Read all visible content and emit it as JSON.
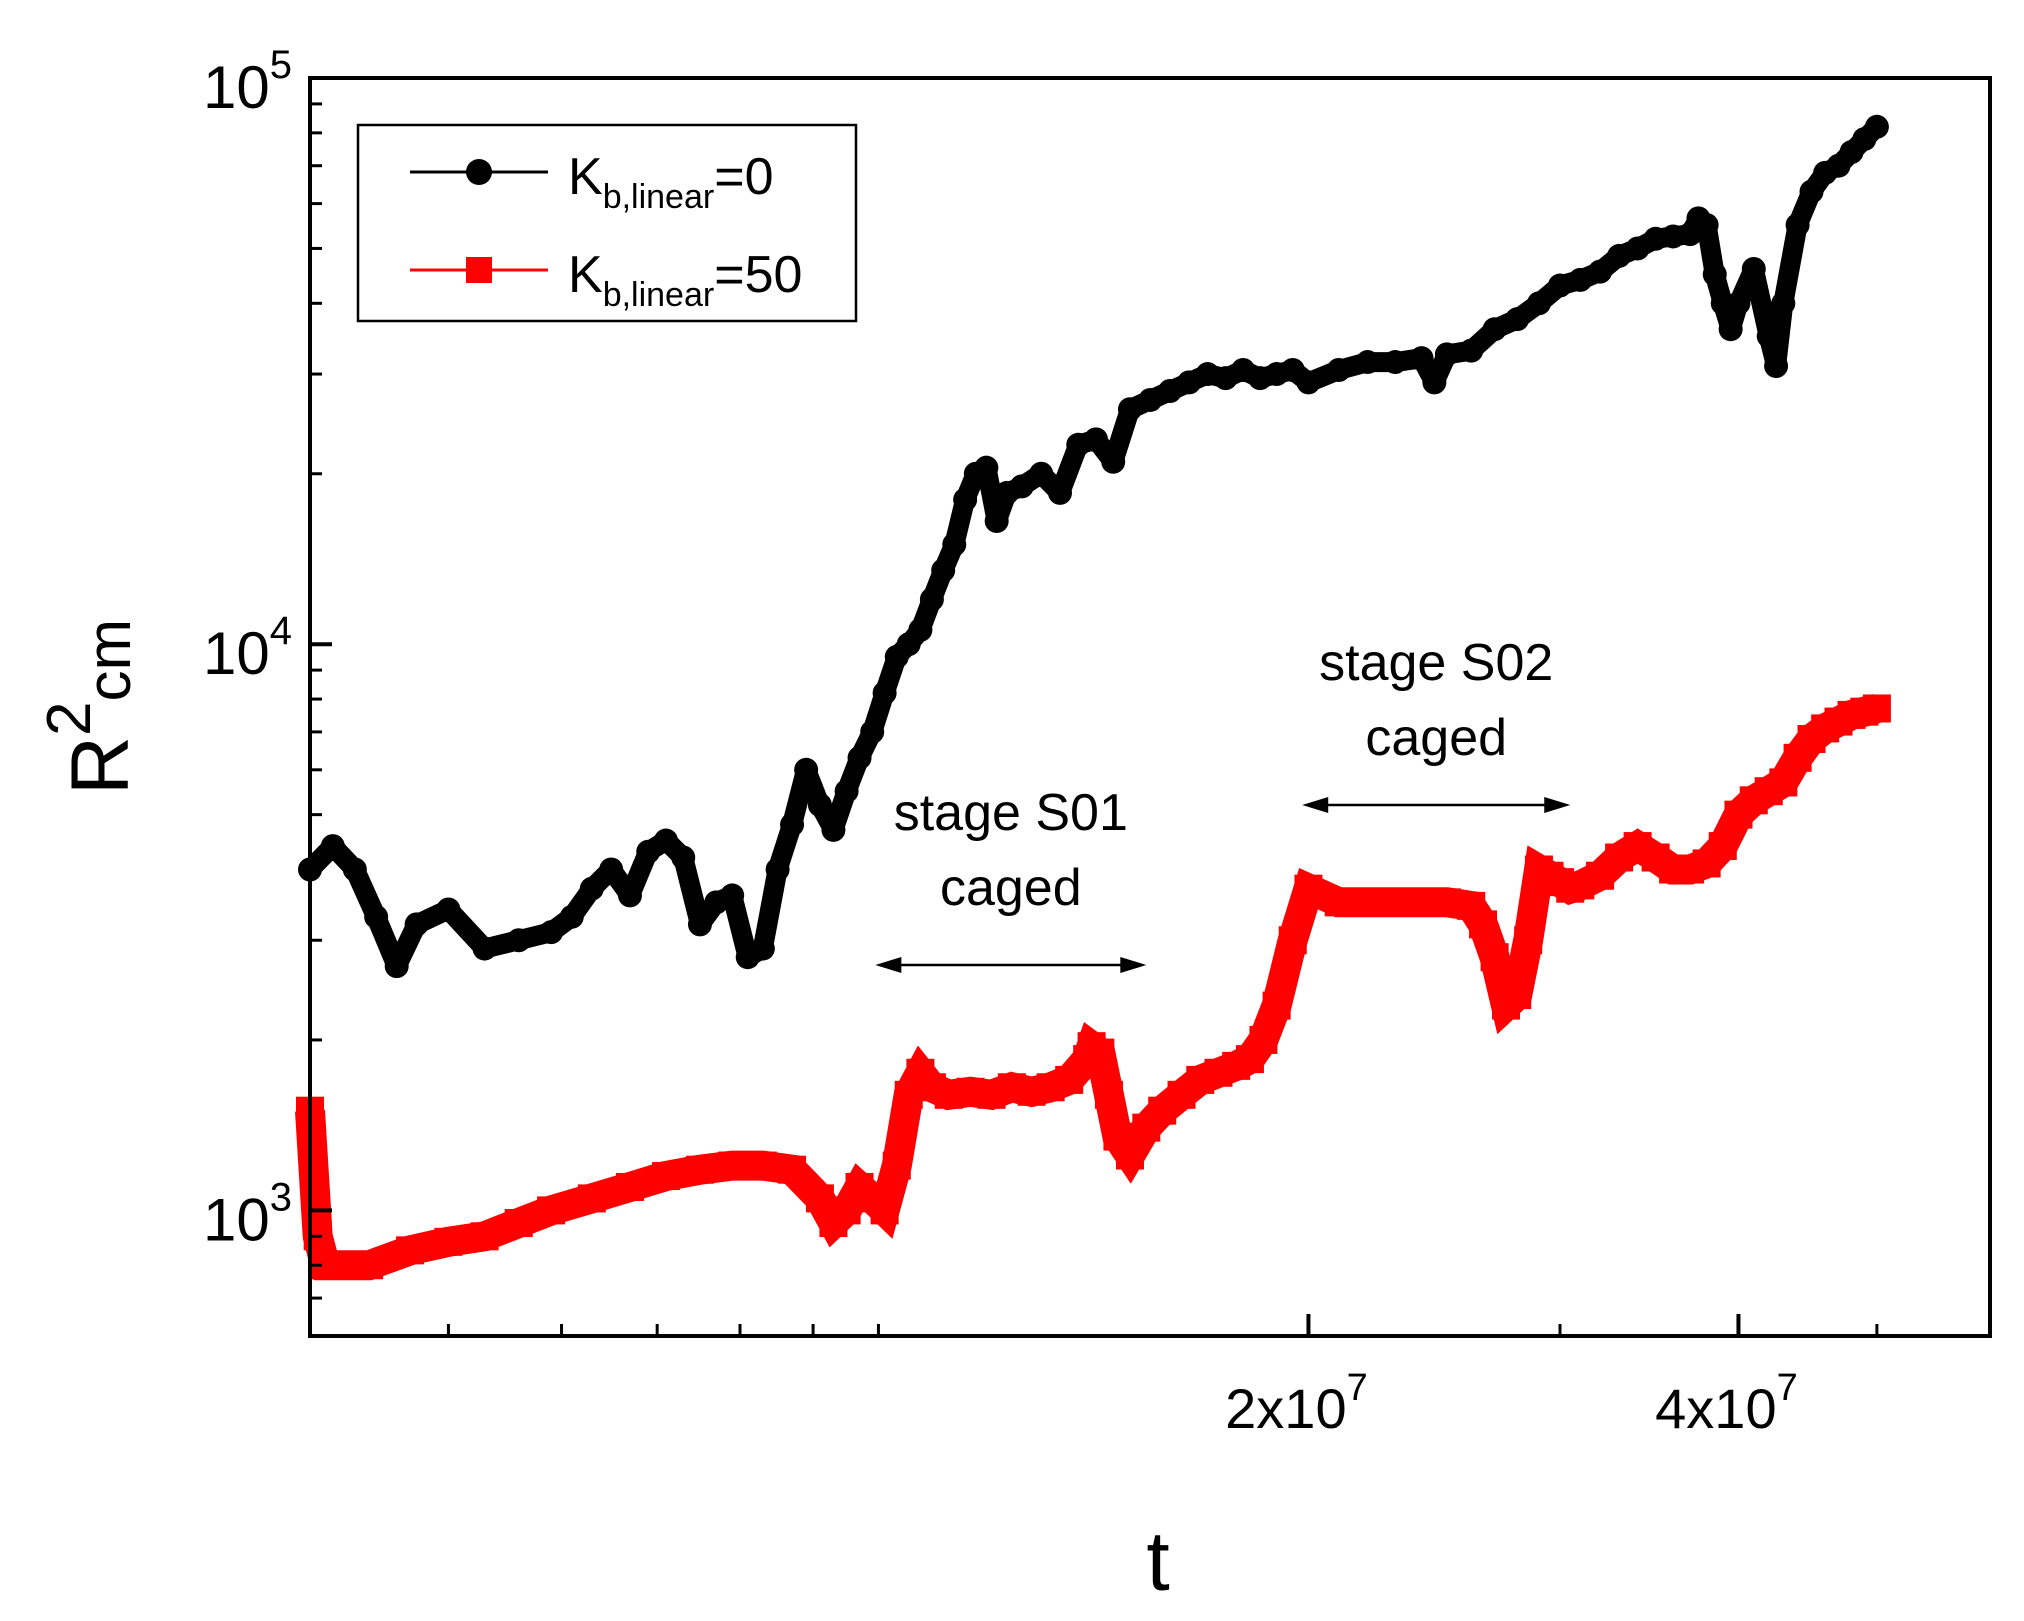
{
  "chart_data": {
    "type": "line",
    "title": "",
    "xlabel": "t",
    "ylabel_main": "R",
    "ylabel_sup": "2",
    "ylabel_sub": "cm",
    "xscale": "log",
    "yscale": "log",
    "xlim": [
      4000000,
      60000000
    ],
    "ylim": [
      600,
      100000
    ],
    "x_ticks": [
      {
        "value": 20000000,
        "mantissa": "2x10",
        "exp": "7"
      },
      {
        "value": 40000000,
        "mantissa": "4x10",
        "exp": "7"
      }
    ],
    "y_ticks": [
      {
        "value": 1000,
        "base": "10",
        "exp": "3"
      },
      {
        "value": 10000,
        "base": "10",
        "exp": "4"
      },
      {
        "value": 100000,
        "base": "10",
        "exp": "5"
      }
    ],
    "legend": {
      "position": "top-left",
      "entries": [
        {
          "main": "K",
          "sub": "b,linear",
          "suffix": "=0",
          "color": "#000000",
          "marker": "circle"
        },
        {
          "main": "K",
          "sub": "b,linear",
          "suffix": "=50",
          "color": "#ff0000",
          "marker": "square"
        }
      ]
    },
    "series": [
      {
        "name": "K_b,linear=0",
        "color": "#000000",
        "x": [
          4000000,
          4150000,
          4300000,
          4450000,
          4600000,
          4750000,
          5000000,
          5300000,
          5600000,
          5900000,
          6100000,
          6300000,
          6500000,
          6700000,
          6900000,
          7100000,
          7300000,
          7500000,
          7700000,
          7900000,
          8100000,
          8300000,
          8500000,
          8700000,
          8900000,
          9100000,
          9300000,
          9500000,
          9700000,
          9900000,
          10100000,
          10300000,
          10500000,
          10700000,
          10900000,
          11100000,
          11300000,
          11500000,
          11700000,
          11900000,
          12100000,
          12300000,
          12600000,
          13000000,
          13400000,
          13800000,
          14200000,
          14600000,
          15000000,
          15500000,
          16000000,
          16500000,
          17000000,
          17500000,
          18000000,
          18500000,
          19000000,
          19500000,
          20000000,
          21000000,
          22000000,
          23000000,
          24000000,
          24500000,
          25000000,
          26000000,
          27000000,
          28000000,
          29000000,
          30000000,
          31000000,
          32000000,
          33000000,
          34000000,
          35000000,
          36000000,
          37000000,
          37500000,
          38000000,
          38500000,
          39000000,
          39500000,
          40000000,
          41000000,
          42000000,
          42500000,
          43000000,
          44000000,
          45000000,
          46000000,
          47000000,
          48000000,
          49000000,
          50000000
        ],
        "values": [
          4000,
          4400,
          4000,
          3300,
          2700,
          3200,
          3400,
          2900,
          3000,
          3100,
          3300,
          3700,
          4000,
          3600,
          4300,
          4500,
          4200,
          3200,
          3500,
          3600,
          2800,
          2900,
          4000,
          4800,
          6000,
          5200,
          4700,
          5500,
          6300,
          7000,
          8200,
          9500,
          10000,
          10600,
          12000,
          13500,
          15000,
          18000,
          20000,
          20500,
          16500,
          18500,
          19000,
          20000,
          18500,
          22500,
          23000,
          21000,
          26000,
          27000,
          28000,
          29000,
          30000,
          29500,
          30500,
          29500,
          30000,
          30500,
          29000,
          30500,
          31500,
          31500,
          32000,
          29000,
          32500,
          33000,
          36000,
          37500,
          40000,
          43000,
          44000,
          45500,
          48500,
          50000,
          52000,
          52500,
          53000,
          56500,
          55000,
          45000,
          40000,
          36000,
          40000,
          46000,
          35000,
          31000,
          40000,
          55000,
          63000,
          68000,
          70000,
          74000,
          78000,
          82000
        ]
      },
      {
        "name": "K_b,linear=50",
        "color": "#ff0000",
        "x": [
          4000000,
          4050000,
          4100000,
          4400000,
          4700000,
          5000000,
          5300000,
          5600000,
          5900000,
          6300000,
          6700000,
          7100000,
          7500000,
          7900000,
          8300000,
          8700000,
          9100000,
          9300000,
          9500000,
          9700000,
          9900000,
          10100000,
          10300000,
          10500000,
          10700000,
          10900000,
          11200000,
          11600000,
          12000000,
          12400000,
          12800000,
          13200000,
          13600000,
          14000000,
          14100000,
          14300000,
          14500000,
          14700000,
          15000000,
          15400000,
          15800000,
          16300000,
          16800000,
          17300000,
          17800000,
          18200000,
          18600000,
          19000000,
          19500000,
          20000000,
          21000000,
          22000000,
          23000000,
          24000000,
          25000000,
          26000000,
          26500000,
          27000000,
          27500000,
          28000000,
          28500000,
          29000000,
          29500000,
          30000000,
          30500000,
          31000000,
          32000000,
          33000000,
          34000000,
          35000000,
          36000000,
          37000000,
          38000000,
          39000000,
          40000000,
          41000000,
          42000000,
          43000000,
          44000000,
          45000000,
          46000000,
          47000000,
          48000000,
          49000000,
          50000000
        ],
        "values": [
          1500,
          900,
          800,
          800,
          850,
          880,
          900,
          950,
          1000,
          1050,
          1100,
          1150,
          1180,
          1200,
          1200,
          1180,
          1050,
          950,
          1000,
          1100,
          1050,
          1000,
          1200,
          1600,
          1750,
          1650,
          1600,
          1620,
          1600,
          1650,
          1620,
          1650,
          1700,
          1850,
          1950,
          1900,
          1600,
          1350,
          1250,
          1400,
          1500,
          1600,
          1700,
          1750,
          1800,
          1850,
          2000,
          2300,
          3000,
          3700,
          3500,
          3500,
          3500,
          3500,
          3500,
          3450,
          3200,
          2800,
          2300,
          2400,
          3000,
          4000,
          3900,
          3800,
          3700,
          3750,
          3900,
          4200,
          4400,
          4200,
          4000,
          4000,
          4100,
          4400,
          5000,
          5300,
          5500,
          5700,
          6300,
          6800,
          7100,
          7300,
          7500,
          7600,
          7700
        ]
      }
    ],
    "annotations": [
      {
        "line1": "stage S01",
        "line2": "caged",
        "x_start": 9950000,
        "x_end": 15400000
      },
      {
        "line1": "stage S02",
        "line2": "caged",
        "x_start": 19800000,
        "x_end": 30500000
      }
    ]
  }
}
